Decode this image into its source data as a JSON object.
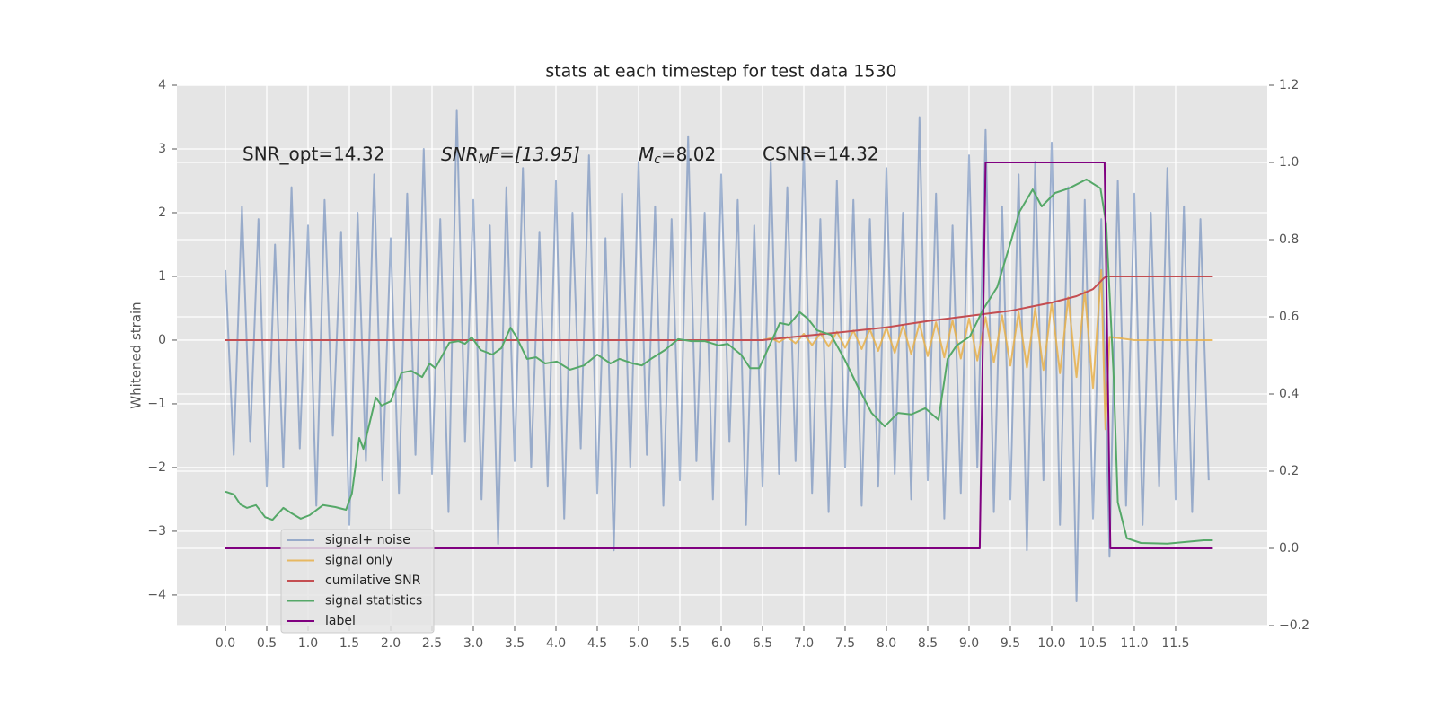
{
  "chart_data": {
    "type": "line",
    "title": "stats at each timestep for test data 1530",
    "ylabel": "Whitened strain",
    "grid": true,
    "legend": "lower left",
    "xlim": [
      -0.587,
      12.609
    ],
    "ylim": [
      -4.48,
      4
    ],
    "y2lim": [
      -0.2,
      1.2
    ],
    "xticks": [
      {
        "value": 0,
        "label": "0.0"
      },
      0.5,
      {
        "value": 1,
        "label": "1.0"
      },
      1.5,
      {
        "value": 2,
        "label": "2.0"
      },
      2.5,
      {
        "value": 3,
        "label": "3.0"
      },
      3.5,
      {
        "value": 4,
        "label": "4.0"
      },
      4.5,
      {
        "value": 5,
        "label": "5.0"
      },
      5.5,
      {
        "value": 6,
        "label": "6.0"
      },
      6.5,
      {
        "value": 7,
        "label": "7.0"
      },
      7.5,
      {
        "value": 8,
        "label": "8.0"
      },
      8.5,
      {
        "value": 9,
        "label": "9.0"
      },
      9.5,
      {
        "value": 10,
        "label": "10.0"
      },
      10.5,
      {
        "value": 11,
        "label": "11.0"
      },
      11.5
    ],
    "yticks": [
      {
        "value": -4,
        "label": "−4"
      },
      {
        "value": -3,
        "label": "−3"
      },
      {
        "value": -2,
        "label": "−2"
      },
      {
        "value": -1,
        "label": "−1"
      },
      0,
      1,
      2,
      3,
      4
    ],
    "y2ticks": [
      {
        "value": -0.2,
        "label": "−0.2"
      },
      {
        "value": 0,
        "label": "0.0"
      },
      0.2,
      0.4,
      0.6,
      0.8,
      {
        "value": 1,
        "label": "1.0"
      },
      1.2
    ],
    "annotations": [
      {
        "text": "SNR_opt=14.32"
      },
      {
        "main": "SNR",
        "sub": "M",
        "rest": "F=[13.95]"
      },
      {
        "main": "M",
        "sub": "c",
        "rest": "=8.02"
      },
      {
        "text": "CSNR=14.32"
      }
    ],
    "series": [
      {
        "name": "signal+ noise",
        "color": "#4c72b0",
        "alpha": 0.5,
        "x": [
          0,
          0.1,
          0.2,
          0.3,
          0.4,
          0.5,
          0.6,
          0.7,
          0.8,
          0.9,
          1,
          1.1,
          1.2,
          1.3,
          1.4,
          1.5,
          1.6,
          1.7,
          1.8,
          1.9,
          2,
          2.1,
          2.2,
          2.3,
          2.4,
          2.5,
          2.6,
          2.7,
          2.8,
          2.9,
          3,
          3.1,
          3.2,
          3.3,
          3.4,
          3.5,
          3.6,
          3.7,
          3.8,
          3.9,
          4,
          4.1,
          4.2,
          4.3,
          4.4,
          4.5,
          4.6,
          4.7,
          4.8,
          4.9,
          5,
          5.1,
          5.2,
          5.3,
          5.4,
          5.5,
          5.6,
          5.7,
          5.8,
          5.9,
          6,
          6.1,
          6.2,
          6.3,
          6.4,
          6.5,
          6.6,
          6.7,
          6.8,
          6.9,
          7,
          7.1,
          7.2,
          7.3,
          7.4,
          7.5,
          7.6,
          7.7,
          7.8,
          7.9,
          8,
          8.1,
          8.2,
          8.3,
          8.4,
          8.5,
          8.6,
          8.7,
          8.8,
          8.9,
          9,
          9.1,
          9.2,
          9.3,
          9.4,
          9.5,
          9.6,
          9.7,
          9.8,
          9.9,
          10,
          10.1,
          10.2,
          10.3,
          10.4,
          10.5,
          10.6,
          10.7,
          10.8,
          10.9,
          11,
          11.1,
          11.2,
          11.3,
          11.4,
          11.5,
          11.6,
          11.7,
          11.8,
          11.9
        ],
        "values": [
          1.1,
          -1.8,
          2.1,
          -1.6,
          1.9,
          -2.3,
          1.5,
          -2.0,
          2.4,
          -1.7,
          1.8,
          -2.6,
          2.2,
          -1.5,
          1.7,
          -2.9,
          2.0,
          -1.9,
          2.6,
          -2.2,
          1.6,
          -2.4,
          2.3,
          -1.8,
          3.0,
          -2.1,
          1.9,
          -2.7,
          3.6,
          -1.6,
          2.2,
          -2.5,
          1.8,
          -3.2,
          2.4,
          -1.9,
          2.7,
          -2.0,
          1.7,
          -2.3,
          2.5,
          -2.8,
          2.0,
          -1.7,
          2.9,
          -2.4,
          1.6,
          -3.3,
          2.3,
          -2.0,
          2.8,
          -1.8,
          2.1,
          -2.6,
          1.9,
          -2.2,
          3.2,
          -1.9,
          2.0,
          -2.5,
          2.6,
          -1.6,
          2.2,
          -2.9,
          1.8,
          -2.3,
          2.8,
          -2.1,
          2.4,
          -1.9,
          3.0,
          -2.4,
          1.9,
          -2.7,
          2.5,
          -2.0,
          2.2,
          -2.6,
          1.9,
          -2.3,
          2.7,
          -2.1,
          2.0,
          -2.5,
          3.5,
          -2.2,
          2.3,
          -2.8,
          1.8,
          -2.4,
          2.9,
          -2.0,
          3.3,
          -2.7,
          2.1,
          -2.5,
          2.6,
          -3.3,
          2.8,
          -2.2,
          3.1,
          -2.9,
          2.4,
          -4.1,
          2.2,
          -2.8,
          1.9,
          -3.4,
          2.5,
          -2.6,
          2.3,
          -2.9,
          2.0,
          -2.3,
          2.7,
          -2.5,
          2.1,
          -2.7,
          1.9,
          -2.2
        ]
      },
      {
        "name": "signal only",
        "color": "#e8b04a",
        "alpha": 0.85,
        "x": [
          0,
          6.5,
          6.6,
          6.7,
          6.8,
          6.9,
          7,
          7.1,
          7.2,
          7.3,
          7.4,
          7.5,
          7.6,
          7.7,
          7.8,
          7.9,
          8,
          8.1,
          8.2,
          8.3,
          8.4,
          8.5,
          8.6,
          8.7,
          8.8,
          8.9,
          9,
          9.1,
          9.2,
          9.3,
          9.4,
          9.5,
          9.6,
          9.7,
          9.8,
          9.9,
          10,
          10.1,
          10.2,
          10.3,
          10.4,
          10.5,
          10.6,
          10.65,
          10.7,
          11,
          11.95
        ],
        "values": [
          0,
          0,
          0.03,
          -0.03,
          0.05,
          -0.05,
          0.1,
          -0.08,
          0.11,
          -0.1,
          0.13,
          -0.12,
          0.15,
          -0.14,
          0.17,
          -0.17,
          0.2,
          -0.2,
          0.23,
          -0.22,
          0.26,
          -0.25,
          0.28,
          -0.27,
          0.31,
          -0.29,
          0.34,
          -0.32,
          0.36,
          -0.35,
          0.39,
          -0.4,
          0.44,
          -0.43,
          0.5,
          -0.47,
          0.58,
          -0.52,
          0.67,
          -0.58,
          0.77,
          -0.75,
          1.1,
          -1.4,
          0.05,
          0,
          0
        ]
      },
      {
        "name": "cumilative SNR",
        "color": "#c44e52",
        "x": [
          0,
          6.5,
          6.8,
          7.5,
          8,
          8.5,
          9,
          9.5,
          10,
          10.3,
          10.5,
          10.63,
          10.66,
          11.95
        ],
        "values": [
          0,
          0,
          0.04,
          0.13,
          0.2,
          0.3,
          0.38,
          0.46,
          0.59,
          0.69,
          0.8,
          0.97,
          1,
          1
        ]
      },
      {
        "name": "signal statistics",
        "color": "#55a868",
        "axis": "y2",
        "x": [
          0,
          0.1,
          0.18,
          0.26,
          0.37,
          0.48,
          0.57,
          0.7,
          0.8,
          0.91,
          1.02,
          1.18,
          1.33,
          1.46,
          1.53,
          1.62,
          1.67,
          1.82,
          1.89,
          2,
          2.13,
          2.25,
          2.38,
          2.47,
          2.54,
          2.71,
          2.82,
          2.9,
          2.98,
          3.09,
          3.23,
          3.34,
          3.45,
          3.52,
          3.65,
          3.76,
          3.87,
          4.01,
          4.17,
          4.34,
          4.5,
          4.66,
          4.77,
          4.93,
          5.04,
          5.15,
          5.32,
          5.48,
          5.64,
          5.8,
          5.97,
          6.08,
          6.24,
          6.35,
          6.46,
          6.62,
          6.71,
          6.82,
          6.95,
          7.05,
          7.16,
          7.33,
          7.49,
          7.65,
          7.82,
          7.98,
          8.14,
          8.3,
          8.47,
          8.63,
          8.74,
          8.85,
          9.01,
          9.17,
          9.34,
          9.5,
          9.61,
          9.77,
          9.88,
          10.04,
          10.21,
          10.42,
          10.59,
          10.66,
          10.75,
          10.8,
          10.91,
          11.08,
          11.4,
          11.84,
          11.95
        ],
        "values": [
          0.147,
          0.14,
          0.114,
          0.105,
          0.112,
          0.081,
          0.074,
          0.105,
          0.091,
          0.077,
          0.086,
          0.112,
          0.107,
          0.1,
          0.142,
          0.286,
          0.258,
          0.391,
          0.37,
          0.381,
          0.455,
          0.46,
          0.444,
          0.479,
          0.467,
          0.533,
          0.537,
          0.53,
          0.547,
          0.514,
          0.502,
          0.519,
          0.572,
          0.549,
          0.491,
          0.495,
          0.479,
          0.484,
          0.463,
          0.474,
          0.502,
          0.479,
          0.491,
          0.479,
          0.474,
          0.491,
          0.514,
          0.542,
          0.537,
          0.537,
          0.526,
          0.53,
          0.502,
          0.467,
          0.467,
          0.542,
          0.584,
          0.579,
          0.612,
          0.595,
          0.565,
          0.553,
          0.491,
          0.421,
          0.351,
          0.316,
          0.351,
          0.347,
          0.363,
          0.333,
          0.491,
          0.526,
          0.549,
          0.619,
          0.677,
          0.791,
          0.872,
          0.93,
          0.886,
          0.921,
          0.933,
          0.956,
          0.933,
          0.84,
          0.444,
          0.119,
          0.026,
          0.014,
          0.012,
          0.021,
          0.021
        ]
      },
      {
        "name": "label",
        "color": "#800080",
        "axis": "y2",
        "x": [
          0,
          9.13,
          9.2,
          10.64,
          10.71,
          11.95
        ],
        "values": [
          0,
          0,
          1,
          1,
          0,
          0
        ]
      }
    ]
  }
}
